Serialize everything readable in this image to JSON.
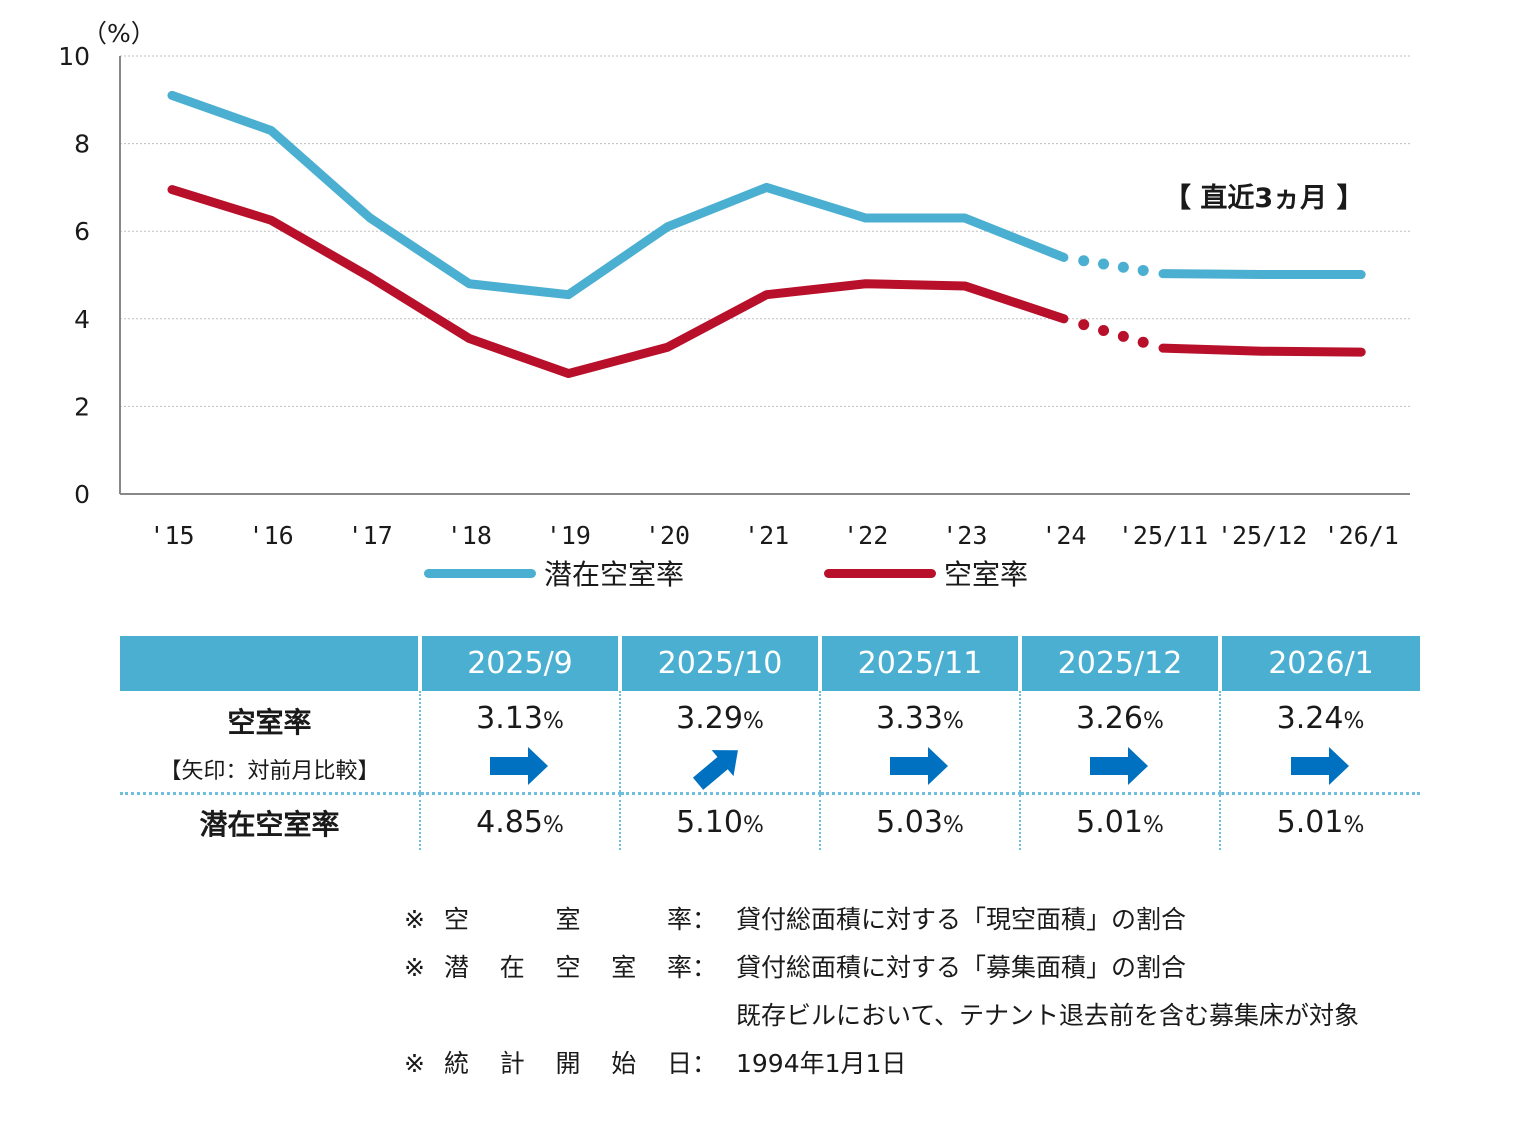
{
  "chart_data": {
    "type": "line",
    "unit_label": "（%）",
    "categories": [
      "'15",
      "'16",
      "'17",
      "'18",
      "'19",
      "'20",
      "'21",
      "'22",
      "'23",
      "'24",
      "'25/11",
      "'25/12",
      "'26/1"
    ],
    "ylim": [
      0,
      10
    ],
    "yticks": [
      "0",
      "2",
      "4",
      "6",
      "8",
      "10"
    ],
    "grid": true,
    "legend_position": "bottom",
    "series": [
      {
        "name": "潜在空室率",
        "color": "#4bafd1",
        "values": [
          9.1,
          8.3,
          6.3,
          4.8,
          4.55,
          6.1,
          7.0,
          6.3,
          6.3,
          5.4,
          5.03,
          5.01,
          5.01
        ]
      },
      {
        "name": "空室率",
        "color": "#b8102a",
        "values": [
          6.95,
          6.25,
          4.95,
          3.55,
          2.75,
          3.35,
          4.55,
          4.8,
          4.75,
          4.0,
          3.33,
          3.26,
          3.24
        ]
      }
    ],
    "annotation": "【 直近3ヵ月 】"
  },
  "table": {
    "headers": [
      "2025/9",
      "2025/10",
      "2025/11",
      "2025/12",
      "2026/1"
    ],
    "vacancy_label": "空室率",
    "vacancy_sub": "【矢印：対前月比較】",
    "potential_label": "潜在空室率",
    "pct_sign": "%",
    "vacancy_values": [
      "3.13",
      "3.29",
      "3.33",
      "3.26",
      "3.24"
    ],
    "arrows": [
      "flat-arrow-icon",
      "up-arrow-icon",
      "flat-arrow-icon",
      "flat-arrow-icon",
      "flat-arrow-icon"
    ],
    "potential_values": [
      "4.85",
      "5.10",
      "5.03",
      "5.01",
      "5.01"
    ],
    "arrow_color": "#0070c0"
  },
  "notes": [
    {
      "mark": "※",
      "key": [
        "空",
        "室",
        "率"
      ],
      "sep": "：",
      "text": "貸付総面積に対する「現空面積」の割合"
    },
    {
      "mark": "※",
      "key": [
        "潜",
        "在",
        "空",
        "室",
        "率"
      ],
      "sep": "：",
      "text": "貸付総面積に対する「募集面積」の割合"
    },
    {
      "mark": "",
      "key": [],
      "sep": "",
      "text": "既存ビルにおいて、テナント退去前を含む募集床が対象"
    },
    {
      "mark": "※",
      "key": [
        "統",
        "計",
        "開",
        "始",
        "日"
      ],
      "sep": "：",
      "text": "1994年1月1日"
    }
  ]
}
